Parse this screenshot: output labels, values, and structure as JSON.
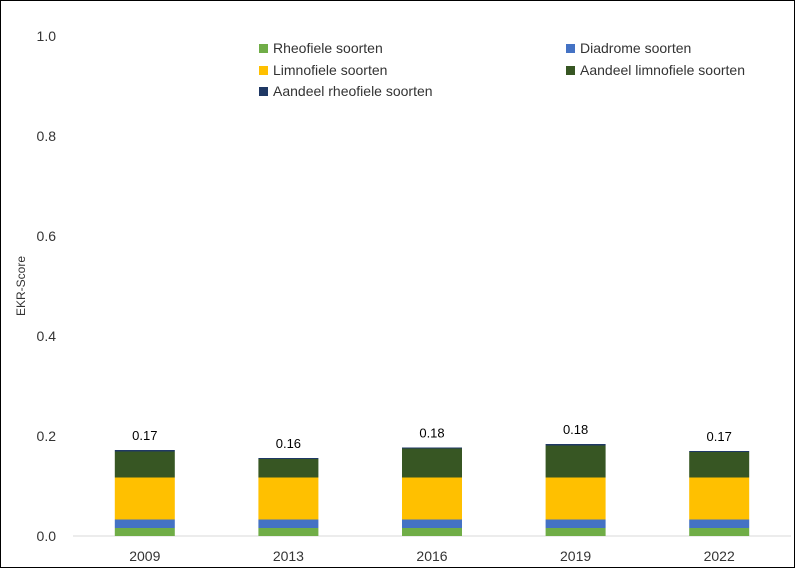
{
  "chart_data": {
    "type": "bar",
    "stacked": true,
    "categories": [
      "2009",
      "2013",
      "2016",
      "2019",
      "2022"
    ],
    "series": [
      {
        "name": "Rheofiele soorten",
        "color": "#70ad47",
        "values": [
          0.016,
          0.016,
          0.016,
          0.016,
          0.016
        ]
      },
      {
        "name": "Diadrome soorten",
        "color": "#4472c4",
        "values": [
          0.017,
          0.017,
          0.017,
          0.017,
          0.017
        ]
      },
      {
        "name": "Limnofiele soorten",
        "color": "#ffc000",
        "values": [
          0.084,
          0.084,
          0.084,
          0.084,
          0.084
        ]
      },
      {
        "name": "Aandeel limnofiele soorten",
        "color": "#375623",
        "values": [
          0.052,
          0.037,
          0.058,
          0.064,
          0.051
        ]
      },
      {
        "name": "Aandeel rheofiele soorten",
        "color": "#1f3864",
        "values": [
          0.003,
          0.002,
          0.002,
          0.003,
          0.002
        ]
      }
    ],
    "totals": [
      "0.17",
      "0.16",
      "0.18",
      "0.18",
      "0.17"
    ],
    "ylabel": "EKR-Score",
    "xlabel": "",
    "title": "",
    "ylim": [
      0,
      1
    ],
    "yticks": [
      "0.0",
      "0.2",
      "0.4",
      "0.6",
      "0.8",
      "1.0"
    ],
    "grid": false,
    "legend_position": "top"
  }
}
